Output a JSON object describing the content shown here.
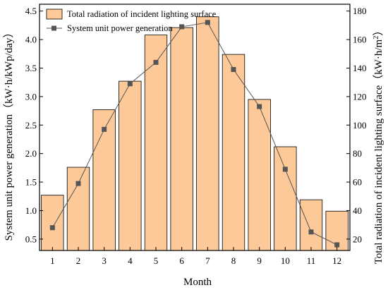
{
  "chart_data": {
    "type": "bar",
    "xlabel": "Month",
    "ylabel_left": "System unit power generation（kW·h/kWp/day）",
    "ylabel_right_main": "Total radiation of incident lighting surface（kW·h/m",
    "ylabel_right_sup": "2",
    "ylabel_right_close": "）",
    "categories": [
      "1",
      "2",
      "3",
      "4",
      "5",
      "6",
      "7",
      "8",
      "9",
      "10",
      "11",
      "12"
    ],
    "left_axis": {
      "ylim": [
        0.3,
        4.62
      ],
      "ticks": [
        0.5,
        1.0,
        1.5,
        2.0,
        2.5,
        3.0,
        3.5,
        4.0,
        4.5
      ],
      "tick_labels": [
        "0.5",
        "1.0",
        "1.5",
        "2.0",
        "2.5",
        "3.0",
        "3.5",
        "4.0",
        "4.5"
      ]
    },
    "right_axis": {
      "ylim": [
        12,
        184.8
      ],
      "ticks": [
        20,
        40,
        60,
        80,
        100,
        120,
        140,
        160,
        180
      ],
      "tick_labels": [
        "20",
        "40",
        "60",
        "80",
        "100",
        "120",
        "140",
        "160",
        "180"
      ]
    },
    "series": [
      {
        "name": "Total radiation of incident lighting surface",
        "kind": "bar",
        "axis": "left",
        "values": [
          1.27,
          1.76,
          2.77,
          3.27,
          4.08,
          4.21,
          4.4,
          3.74,
          2.95,
          2.12,
          1.19,
          0.99
        ],
        "color": "#fdc998",
        "edge_color": "#000000"
      },
      {
        "name": "System unit power generation",
        "kind": "line",
        "axis": "right",
        "values": [
          28,
          59,
          97,
          129,
          144,
          169,
          172,
          139,
          113,
          69,
          25,
          16
        ],
        "color": "#555555",
        "marker": "square"
      }
    ],
    "legend_placement": "top-left",
    "grid": false
  }
}
